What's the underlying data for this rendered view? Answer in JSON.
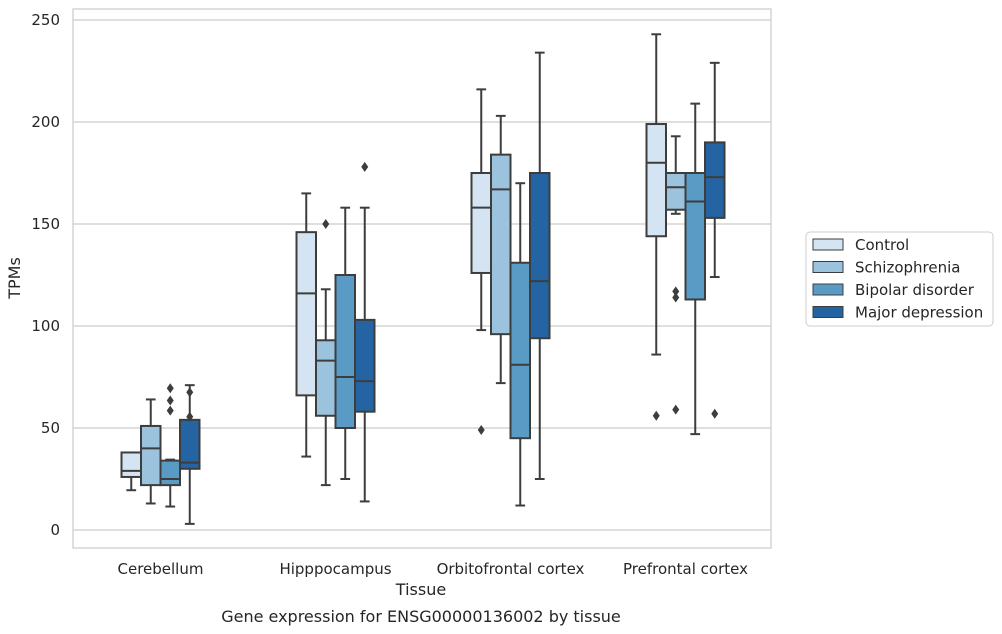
{
  "chart_data": {
    "type": "box",
    "title": "",
    "caption": "Gene expression for ENSG00000136002 by tissue",
    "xlabel": "Tissue",
    "ylabel": "TPMs",
    "ylim": [
      -8,
      255
    ],
    "yticks": [
      0,
      50,
      100,
      150,
      200,
      250
    ],
    "grid": "horizontal",
    "legend_position": "right",
    "categories": [
      "Cerebellum",
      "Hipppocampus",
      "Orbitofrontal cortex",
      "Prefrontal cortex"
    ],
    "series": [
      {
        "name": "Control",
        "color": "#d4e4f2",
        "boxes": [
          {
            "whisker_low": 19.5,
            "q1": 26,
            "median": 29,
            "q3": 38,
            "whisker_high": 38,
            "outliers": []
          },
          {
            "whisker_low": 36,
            "q1": 66,
            "median": 116,
            "q3": 146,
            "whisker_high": 165,
            "outliers": []
          },
          {
            "whisker_low": 98,
            "q1": 126,
            "median": 158,
            "q3": 175,
            "whisker_high": 216,
            "outliers": [
              49
            ]
          },
          {
            "whisker_low": 86,
            "q1": 144,
            "median": 180,
            "q3": 199,
            "whisker_high": 243,
            "outliers": [
              56
            ]
          }
        ]
      },
      {
        "name": "Schizophrenia",
        "color": "#9cc3dd",
        "boxes": [
          {
            "whisker_low": 13,
            "q1": 22,
            "median": 40,
            "q3": 51,
            "whisker_high": 64,
            "outliers": []
          },
          {
            "whisker_low": 22,
            "q1": 56,
            "median": 83,
            "q3": 93,
            "whisker_high": 118,
            "outliers": [
              150
            ]
          },
          {
            "whisker_low": 72,
            "q1": 96,
            "median": 167,
            "q3": 184,
            "whisker_high": 203,
            "outliers": []
          },
          {
            "whisker_low": 155,
            "q1": 157,
            "median": 168,
            "q3": 175,
            "whisker_high": 193,
            "outliers": [
              114,
              117,
              59
            ]
          }
        ]
      },
      {
        "name": "Bipolar disorder",
        "color": "#5a9bc6",
        "boxes": [
          {
            "whisker_low": 11.5,
            "q1": 22,
            "median": 25,
            "q3": 34,
            "whisker_high": 34.5,
            "outliers": [
              69.5,
              63.5,
              58.5
            ]
          },
          {
            "whisker_low": 25,
            "q1": 50,
            "median": 75,
            "q3": 125,
            "whisker_high": 158,
            "outliers": []
          },
          {
            "whisker_low": 12,
            "q1": 45,
            "median": 81,
            "q3": 131,
            "whisker_high": 170,
            "outliers": []
          },
          {
            "whisker_low": 47,
            "q1": 113,
            "median": 161,
            "q3": 175,
            "whisker_high": 209,
            "outliers": []
          }
        ]
      },
      {
        "name": "Major depression",
        "color": "#2464a2",
        "boxes": [
          {
            "whisker_low": 3,
            "q1": 30,
            "median": 33,
            "q3": 54,
            "whisker_high": 71,
            "outliers": [
              67.5,
              55.5
            ]
          },
          {
            "whisker_low": 14,
            "q1": 58,
            "median": 73,
            "q3": 103,
            "whisker_high": 158,
            "outliers": [
              178
            ]
          },
          {
            "whisker_low": 25,
            "q1": 94,
            "median": 122,
            "q3": 175,
            "whisker_high": 234,
            "outliers": []
          },
          {
            "whisker_low": 124,
            "q1": 153,
            "median": 173,
            "q3": 190,
            "whisker_high": 229,
            "outliers": [
              57
            ]
          }
        ]
      }
    ]
  }
}
